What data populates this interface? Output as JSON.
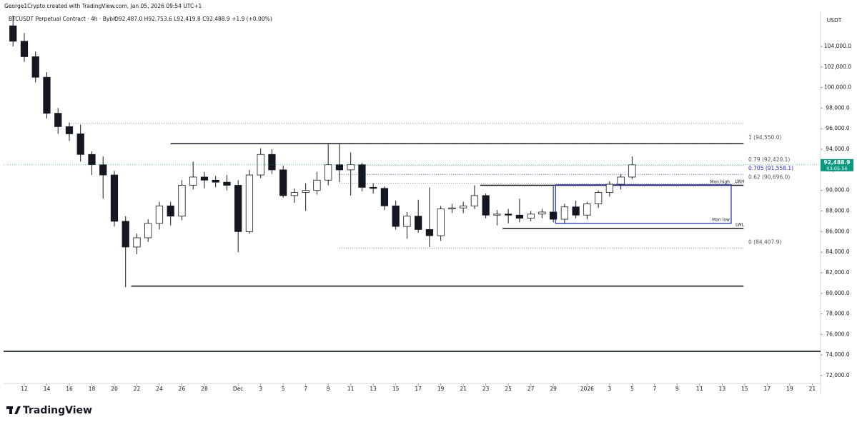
{
  "header": {
    "credit": "George1Crypto created with TradingView.com, Jan 05, 2026 09:54 UTC+1",
    "symbol": "BTCUSDT Perpetual Contract · 4h · Bybit",
    "ohlc": "O92,487.0 H92,753.6 L92,419.8 C92,488.9 +1.9 (+0.00%)"
  },
  "footer": {
    "brand": "TradingView"
  },
  "chart_data": {
    "type": "candlestick",
    "currency": "USDT",
    "x": [
      -1,
      0,
      1,
      2,
      3,
      4,
      5,
      6,
      7,
      8,
      9,
      10,
      11,
      12,
      13,
      14,
      15,
      16,
      17,
      18,
      19,
      20,
      21,
      22,
      23,
      24,
      25,
      26,
      27,
      28,
      29,
      30,
      31,
      32,
      33,
      34,
      35,
      36,
      37,
      38,
      39,
      40,
      41,
      42,
      43,
      44,
      45,
      46,
      47,
      48,
      49,
      50,
      51,
      52,
      53,
      54
    ],
    "open": [
      106000,
      104500,
      103000,
      101000,
      97500,
      96200,
      95500,
      93500,
      92500,
      91500,
      87000,
      84500,
      85400,
      86800,
      88500,
      87500,
      90500,
      91300,
      91000,
      90800,
      90500,
      86000,
      91500,
      93500,
      92000,
      89500,
      89800,
      90000,
      91000,
      92500,
      92000,
      92500,
      90300,
      90200,
      88500,
      86500,
      87500,
      86200,
      85600,
      88200,
      88300,
      88500,
      89500,
      87600,
      87700,
      87600,
      87300,
      87700,
      87900,
      87200,
      88400,
      87600,
      88700,
      89800,
      90600,
      91300
    ],
    "high": [
      107000,
      105300,
      103500,
      101500,
      98000,
      96600,
      96400,
      93800,
      93300,
      91900,
      87500,
      85800,
      87200,
      88900,
      88900,
      91000,
      92800,
      91800,
      91400,
      91500,
      91000,
      92000,
      94100,
      94000,
      92400,
      90200,
      90700,
      91800,
      94600,
      94600,
      93700,
      92700,
      90700,
      90400,
      89000,
      87900,
      89100,
      90300,
      88500,
      88700,
      88900,
      90500,
      89700,
      88100,
      88200,
      89200,
      88000,
      88200,
      90400,
      88700,
      89000,
      88900,
      90000,
      90900,
      91600,
      93300
    ],
    "low": [
      104000,
      102500,
      100500,
      97000,
      95500,
      94800,
      92800,
      91500,
      89200,
      86500,
      80600,
      83800,
      85000,
      86200,
      86600,
      87100,
      90100,
      90200,
      90300,
      90000,
      84000,
      85800,
      91200,
      91600,
      89300,
      88800,
      88000,
      89600,
      90500,
      90800,
      89500,
      89900,
      89700,
      88100,
      86200,
      85300,
      85900,
      84500,
      85100,
      87800,
      87800,
      88200,
      87300,
      86600,
      86800,
      86900,
      87000,
      87300,
      86900,
      86800,
      87300,
      87200,
      88300,
      89400,
      90100,
      91100
    ],
    "close": [
      104500,
      103000,
      101000,
      97500,
      96200,
      95500,
      93500,
      92500,
      91500,
      87000,
      84500,
      85400,
      86800,
      88500,
      87500,
      90500,
      91300,
      91000,
      90800,
      90500,
      86000,
      91500,
      93500,
      92000,
      89500,
      89800,
      90000,
      91000,
      92500,
      92000,
      92500,
      90300,
      90200,
      88500,
      86500,
      87500,
      86200,
      85600,
      88200,
      88300,
      88500,
      89500,
      87600,
      87700,
      87600,
      87300,
      87700,
      87900,
      87200,
      88400,
      87600,
      88700,
      89800,
      90600,
      91300,
      92488.9
    ],
    "up_color": "#ffffff",
    "down_color": "#131722",
    "xlim": [
      -1.84,
      70.74
    ],
    "xticks": [
      {
        "value": 0,
        "label": "12"
      },
      {
        "value": 2,
        "label": "14"
      },
      {
        "value": 4,
        "label": "16"
      },
      {
        "value": 6,
        "label": "18"
      },
      {
        "value": 8,
        "label": "20"
      },
      {
        "value": 10,
        "label": "22"
      },
      {
        "value": 12,
        "label": "24"
      },
      {
        "value": 14,
        "label": "26"
      },
      {
        "value": 16,
        "label": "28"
      },
      {
        "value": 19,
        "label": "Dec"
      },
      {
        "value": 21,
        "label": "3"
      },
      {
        "value": 23,
        "label": "5"
      },
      {
        "value": 25,
        "label": "7"
      },
      {
        "value": 27,
        "label": "9"
      },
      {
        "value": 29,
        "label": "11"
      },
      {
        "value": 31,
        "label": "13"
      },
      {
        "value": 33,
        "label": "15"
      },
      {
        "value": 35,
        "label": "17"
      },
      {
        "value": 37,
        "label": "19"
      },
      {
        "value": 39,
        "label": "21"
      },
      {
        "value": 41,
        "label": "23"
      },
      {
        "value": 43,
        "label": "25"
      },
      {
        "value": 45,
        "label": "27"
      },
      {
        "value": 47,
        "label": "29"
      },
      {
        "value": 50,
        "label": "2026"
      },
      {
        "value": 52,
        "label": "3"
      },
      {
        "value": 54,
        "label": "5"
      },
      {
        "value": 56,
        "label": "7"
      },
      {
        "value": 58,
        "label": "9"
      },
      {
        "value": 60,
        "label": "11"
      },
      {
        "value": 62,
        "label": "13"
      },
      {
        "value": 64,
        "label": "15"
      },
      {
        "value": 66,
        "label": "17"
      },
      {
        "value": 68,
        "label": "19"
      },
      {
        "value": 70,
        "label": "21"
      }
    ],
    "ylim": [
      71240,
      107260
    ],
    "yticks": [
      {
        "value": 72000,
        "label": "72,000.0"
      },
      {
        "value": 74000,
        "label": "74,000.0"
      },
      {
        "value": 76000,
        "label": "76,000.0"
      },
      {
        "value": 78000,
        "label": "78,000.0"
      },
      {
        "value": 80000,
        "label": "80,000.0"
      },
      {
        "value": 82000,
        "label": "82,000.0"
      },
      {
        "value": 84000,
        "label": "84,000.0"
      },
      {
        "value": 86000,
        "label": "86,000.0"
      },
      {
        "value": 88000,
        "label": "88,000.0"
      },
      {
        "value": 90000,
        "label": "90,000.0"
      },
      {
        "value": 92000,
        "label": "92,000.0"
      },
      {
        "value": 94000,
        "label": "94,000.0"
      },
      {
        "value": 96000,
        "label": "96,000.0"
      },
      {
        "value": 98000,
        "label": "98,000.0"
      },
      {
        "value": 100000,
        "label": "100,000.0"
      },
      {
        "value": 102000,
        "label": "102,000.0"
      },
      {
        "value": 104000,
        "label": "104,000.0"
      }
    ],
    "last_price": {
      "value": 92488.9,
      "label": "92,488.9",
      "countdown": "03:05:56",
      "color": "#089981"
    },
    "levels": [
      {
        "price": 94550,
        "from": 13,
        "to": 63.9,
        "style": "solid"
      },
      {
        "price": 90500,
        "from": 40.5,
        "to": 63.9,
        "style": "solid"
      },
      {
        "price": 86300,
        "from": 42.5,
        "to": 63.9,
        "style": "solid"
      },
      {
        "price": 80700,
        "from": 9.5,
        "to": 63.9,
        "style": "solid"
      },
      {
        "price": 74360,
        "from": -1.84,
        "to": 70.74,
        "style": "solid"
      },
      {
        "price": 96500,
        "from": 4,
        "to": 63.9,
        "style": "dotted"
      }
    ],
    "fib": {
      "from": 28,
      "to": 63.9,
      "levels": [
        {
          "label": "1 (94,550.0)",
          "price": 94550.0,
          "color": "#555555"
        },
        {
          "label": "0.79 (92,420.1)",
          "price": 92420.1,
          "color": "#555555"
        },
        {
          "label": "0.705 (91,558.1)",
          "price": 91558.1,
          "color": "#2a2ad6"
        },
        {
          "label": "0.62 (90,696.0)",
          "price": 90696.0,
          "color": "#555555"
        },
        {
          "label": "0 (84,407.9)",
          "price": 84407.9,
          "color": "#555555"
        }
      ]
    },
    "range_box": {
      "from": 47.2,
      "to": 62.8,
      "high": 90550,
      "low": 86800,
      "color": "#3344cc",
      "high_label": "Mon high",
      "low_label": "Mon low"
    },
    "level_tags": [
      {
        "label": "LWH",
        "price": 90500
      },
      {
        "label": "LWL",
        "price": 86300
      }
    ]
  }
}
